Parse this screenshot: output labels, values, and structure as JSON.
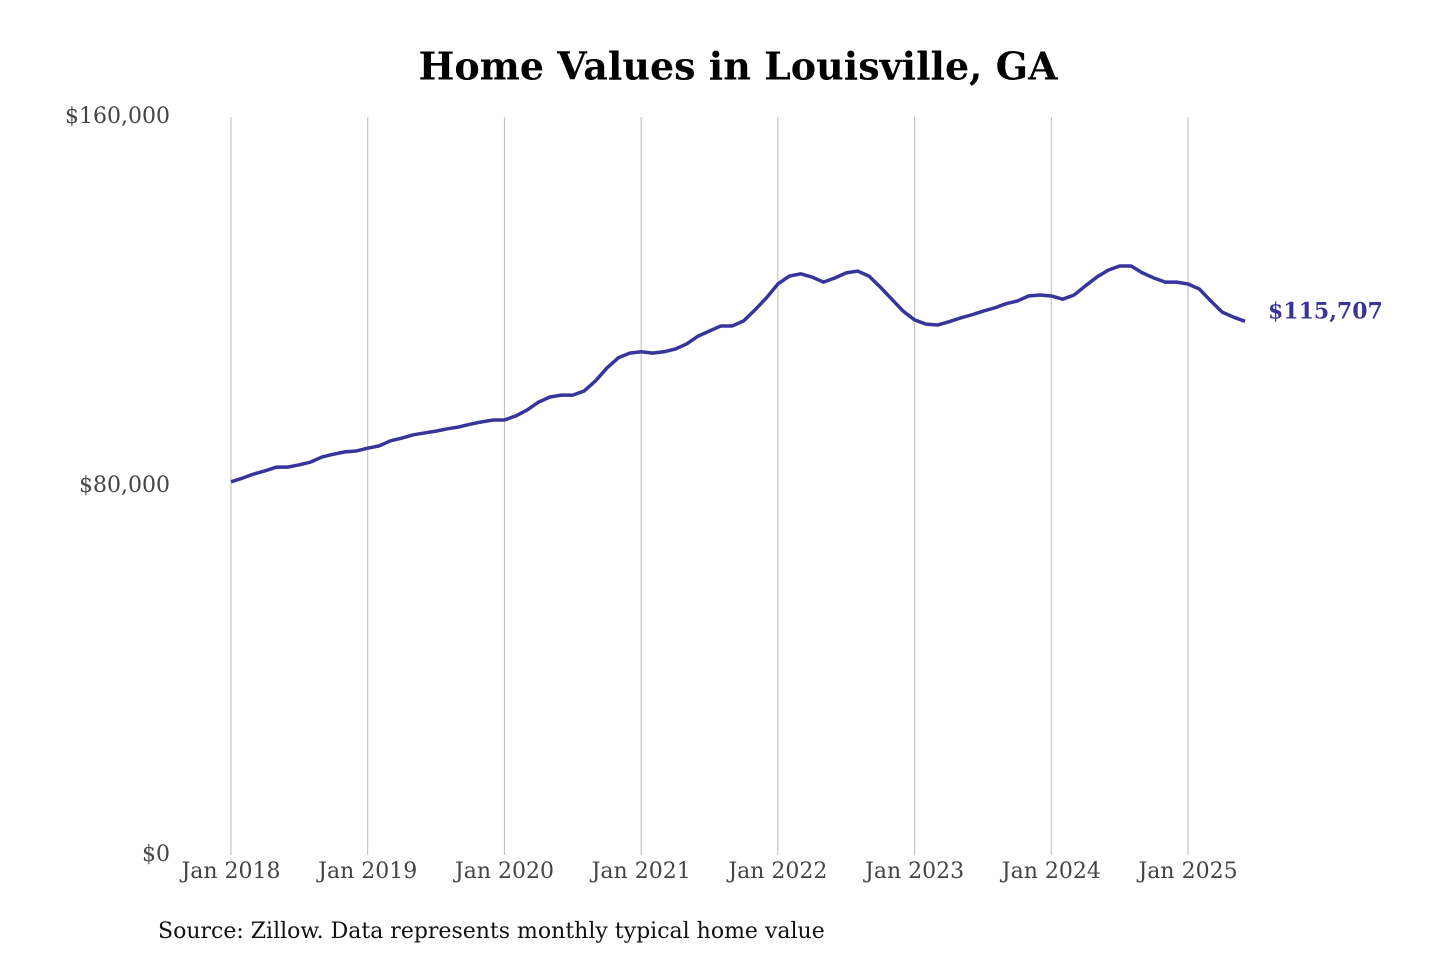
{
  "chart_data": {
    "type": "line",
    "title": "Home Values in Louisville, GA",
    "source": "Source: Zillow. Data represents monthly typical home value",
    "x": [
      "2018-01",
      "2018-02",
      "2018-03",
      "2018-04",
      "2018-05",
      "2018-06",
      "2018-07",
      "2018-08",
      "2018-09",
      "2018-10",
      "2018-11",
      "2018-12",
      "2019-01",
      "2019-02",
      "2019-03",
      "2019-04",
      "2019-05",
      "2019-06",
      "2019-07",
      "2019-08",
      "2019-09",
      "2019-10",
      "2019-11",
      "2019-12",
      "2020-01",
      "2020-02",
      "2020-03",
      "2020-04",
      "2020-05",
      "2020-06",
      "2020-07",
      "2020-08",
      "2020-09",
      "2020-10",
      "2020-11",
      "2020-12",
      "2021-01",
      "2021-02",
      "2021-03",
      "2021-04",
      "2021-05",
      "2021-06",
      "2021-07",
      "2021-08",
      "2021-09",
      "2021-10",
      "2021-11",
      "2021-12",
      "2022-01",
      "2022-02",
      "2022-03",
      "2022-04",
      "2022-05",
      "2022-06",
      "2022-07",
      "2022-08",
      "2022-09",
      "2022-10",
      "2022-11",
      "2022-12",
      "2023-01",
      "2023-02",
      "2023-03",
      "2023-04",
      "2023-05",
      "2023-06",
      "2023-07",
      "2023-08",
      "2023-09",
      "2023-10",
      "2023-11",
      "2023-12",
      "2024-01",
      "2024-02",
      "2024-03",
      "2024-04",
      "2024-05",
      "2024-06",
      "2024-07",
      "2024-08",
      "2024-09",
      "2024-10",
      "2024-11",
      "2024-12",
      "2025-01",
      "2025-02",
      "2025-03",
      "2025-04",
      "2025-05",
      "2025-06"
    ],
    "series": [
      {
        "color": "#37359a",
        "values": [
          80900,
          81700,
          82600,
          83300,
          84100,
          84100,
          84600,
          85200,
          86300,
          86900,
          87400,
          87600,
          88200,
          88700,
          89800,
          90400,
          91100,
          91500,
          91900,
          92400,
          92800,
          93400,
          93900,
          94300,
          94300,
          95200,
          96500,
          98200,
          99300,
          99700,
          99700,
          100600,
          102800,
          105600,
          107800,
          108800,
          109100,
          108800,
          109100,
          109700,
          110800,
          112500,
          113600,
          114700,
          114700,
          115800,
          118200,
          120800,
          123800,
          125500,
          126000,
          125300,
          124200,
          125100,
          126200,
          126600,
          125500,
          123100,
          120500,
          117900,
          116000,
          115100,
          114900,
          115600,
          116400,
          117100,
          117900,
          118600,
          119500,
          120100,
          121200,
          121400,
          121200,
          120500,
          121400,
          123400,
          125300,
          126800,
          127700,
          127700,
          126200,
          125100,
          124200,
          124200,
          123800,
          122700,
          120100,
          117700,
          116600,
          115707
        ],
        "value_labels": [
          null,
          null,
          null,
          null,
          null,
          null,
          null,
          null,
          null,
          null,
          null,
          null,
          null,
          null,
          null,
          null,
          null,
          null,
          null,
          null,
          null,
          null,
          null,
          null,
          null,
          null,
          null,
          null,
          null,
          null,
          null,
          null,
          null,
          null,
          null,
          null,
          null,
          null,
          null,
          null,
          null,
          null,
          null,
          null,
          null,
          null,
          null,
          null,
          null,
          null,
          null,
          null,
          null,
          null,
          null,
          null,
          null,
          null,
          null,
          null,
          null,
          null,
          null,
          null,
          null,
          null,
          null,
          null,
          null,
          null,
          null,
          null,
          null,
          null,
          null,
          null,
          null,
          null,
          null,
          null,
          null,
          null,
          null,
          null,
          null,
          null,
          null,
          null,
          null,
          "$115,707"
        ]
      }
    ],
    "xlim": [
      "2018-01",
      "2025-06"
    ],
    "xticks": [
      {
        "value": "2018-01",
        "label": "Jan 2018"
      },
      {
        "value": "2019-01",
        "label": "Jan 2019"
      },
      {
        "value": "2020-01",
        "label": "Jan 2020"
      },
      {
        "value": "2021-01",
        "label": "Jan 2021"
      },
      {
        "value": "2022-01",
        "label": "Jan 2022"
      },
      {
        "value": "2023-01",
        "label": "Jan 2023"
      },
      {
        "value": "2024-01",
        "label": "Jan 2024"
      },
      {
        "value": "2025-01",
        "label": "Jan 2025"
      }
    ],
    "ylim": [
      0,
      160000
    ],
    "yticks": [
      {
        "value": 0,
        "label": "$0"
      },
      {
        "value": 80000,
        "label": "$80,000"
      },
      {
        "value": 160000,
        "label": "$160,000"
      }
    ],
    "grid": "x"
  }
}
